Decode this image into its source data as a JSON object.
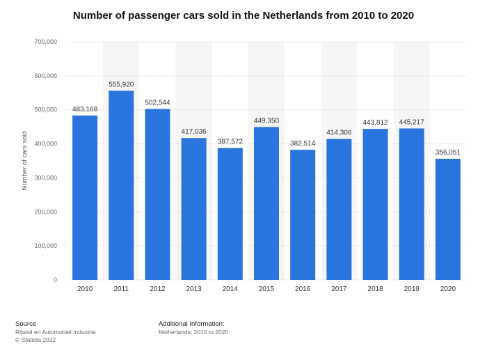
{
  "chart_data": {
    "type": "bar",
    "title": "Number of passenger cars sold in the Netherlands from 2010 to 2020",
    "xlabel": "",
    "ylabel": "Number of cars sold",
    "categories": [
      "2010",
      "2011",
      "2012",
      "2013",
      "2014",
      "2015",
      "2016",
      "2017",
      "2018",
      "2019",
      "2020"
    ],
    "values": [
      483168,
      555920,
      502544,
      417036,
      387572,
      449350,
      382514,
      414306,
      443812,
      445217,
      356051
    ],
    "value_labels": [
      "483,168",
      "555,920",
      "502,544",
      "417,036",
      "387,572",
      "449,350",
      "382,514",
      "414,306",
      "443,812",
      "445,217",
      "356,051"
    ],
    "ylim": [
      0,
      700000
    ],
    "yticks": [
      "0",
      "100,000",
      "200,000",
      "300,000",
      "400,000",
      "500,000",
      "600,000",
      "700,000"
    ],
    "bar_color": "#2a75dd",
    "grid": true
  },
  "footer": {
    "source_heading": "Source",
    "source_line1": "Rijwiel en Automobiel Industrie",
    "source_line2": "© Statista 2022",
    "info_heading": "Additional Information:",
    "info_line1": "Netherlands; 2010 to 2020"
  }
}
